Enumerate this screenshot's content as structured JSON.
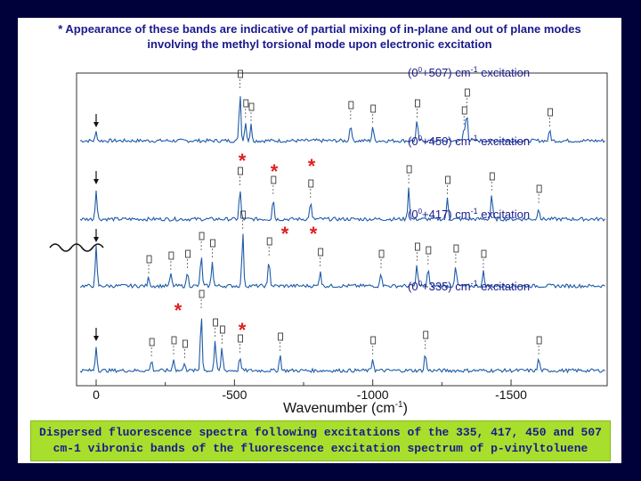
{
  "header": {
    "line1": "* Appearance of these bands are indicative of  partial mixing of in-plane and out of plane modes",
    "line2": "involving the methyl torsional mode upon electronic excitation"
  },
  "chart_data": {
    "type": "line",
    "xlabel": "Wavenumber (cm-1)",
    "ylabel": "",
    "xlim": [
      0,
      -1700
    ],
    "x_ticks": [
      "0",
      "-500",
      "-1000",
      "-1500"
    ],
    "x_tick_values": [
      0,
      -500,
      -1000,
      -1500
    ],
    "series": [
      {
        "name": "(0+507) cm-1 excitation",
        "label_prefix": "(0",
        "label_suffix": "+507) cm",
        "label_unit": " excitation"
      },
      {
        "name": "(0+450) cm-1 excitation",
        "label_prefix": "(0",
        "label_suffix": "+450) cm",
        "label_unit": " excitation"
      },
      {
        "name": "(0+417) cm-1 excitation",
        "label_prefix": "(0",
        "label_suffix": "+417) cm",
        "label_unit": " excitation"
      },
      {
        "name": "(0+335) cm-1 excitation",
        "label_prefix": "(0",
        "label_suffix": "+335) cm",
        "label_unit": " excitation"
      }
    ],
    "colors": {
      "spectrum": "#1e5ba8",
      "label": "#1a1a8c",
      "star": "#e02020",
      "caption_bg": "#a7df2c",
      "frame": "#00003b"
    }
  },
  "caption": {
    "line1": "Dispersed fluorescence spectra following excitations of the 335,  417, 450 and 507",
    "line2": "cm-1 vibronic bands of the fluorescence excitation spectrum of p-vinyltoluene"
  }
}
